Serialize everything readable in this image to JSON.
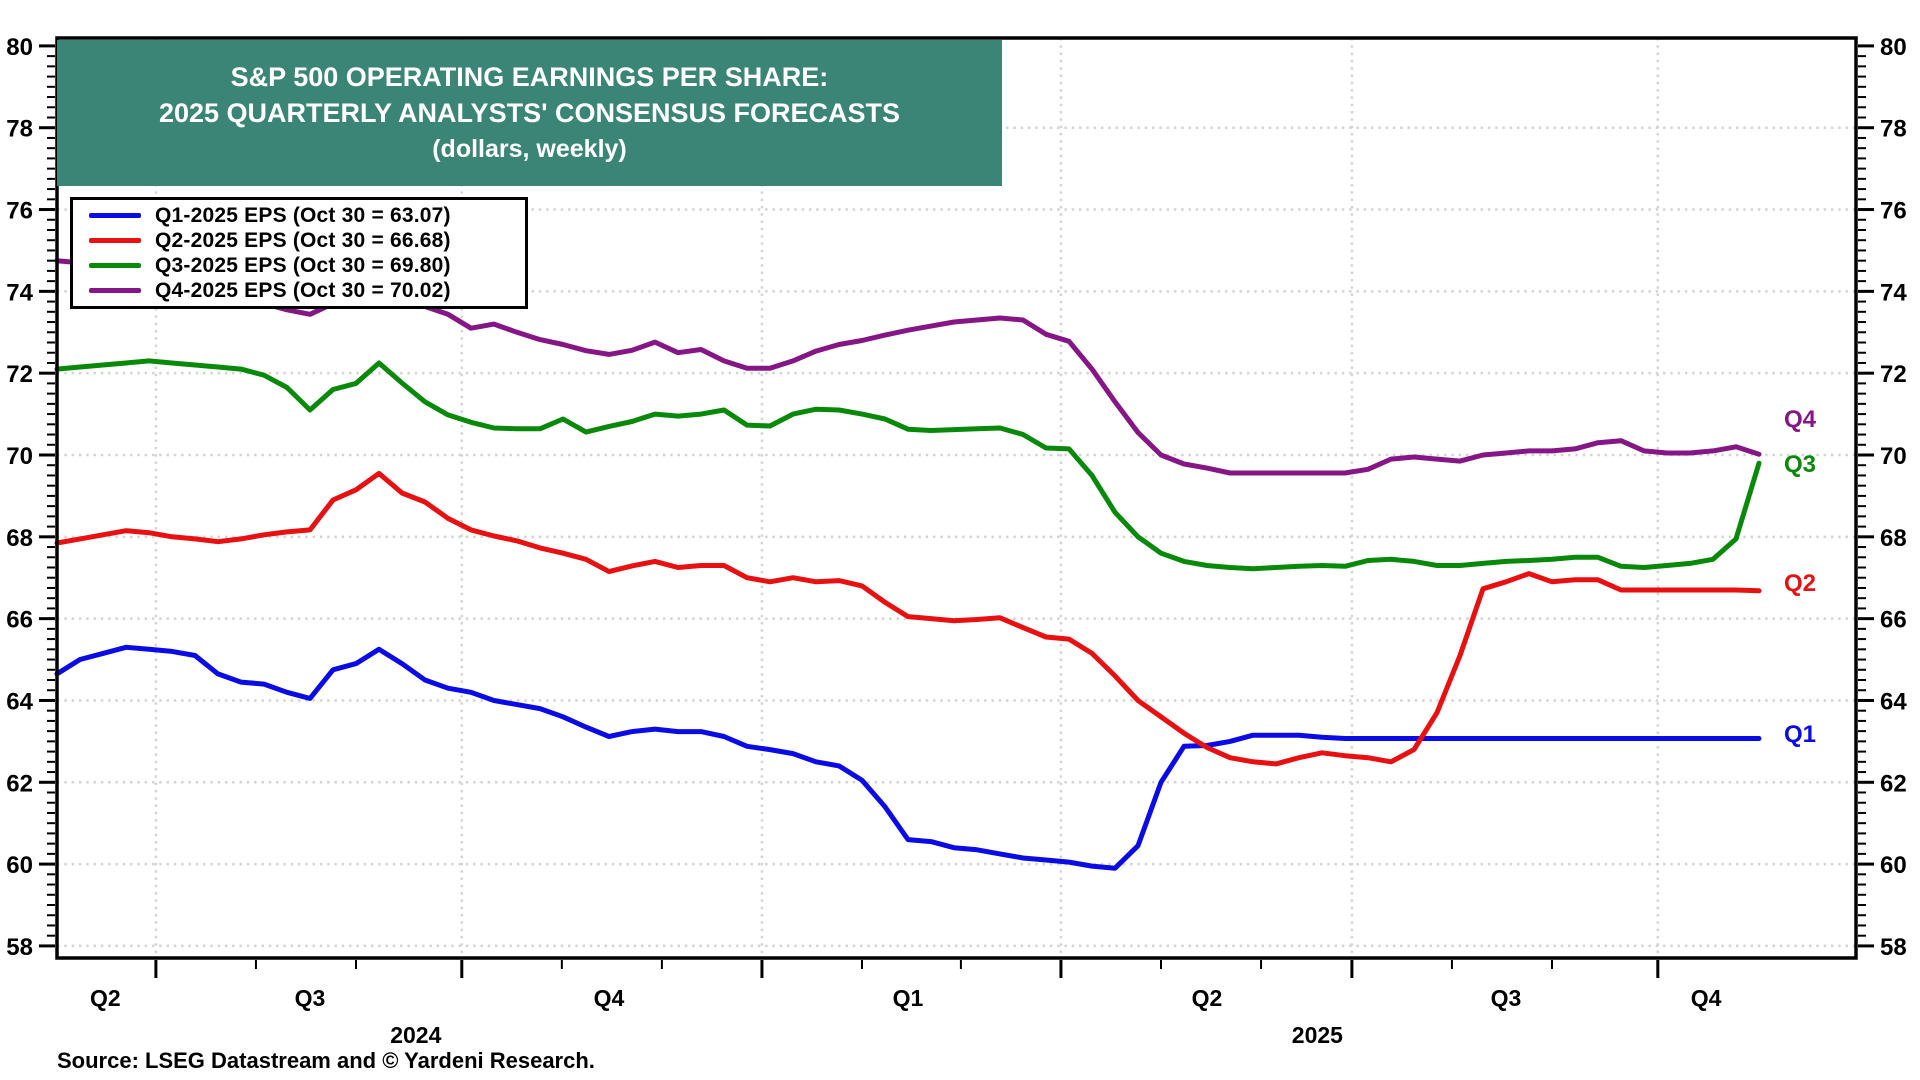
{
  "chart_data": {
    "type": "line",
    "title": {
      "line1": "S&P 500 OPERATING EARNINGS PER SHARE:",
      "line2": "2025 QUARTERLY ANALYSTS' CONSENSUS FORECASTS",
      "line3": "(dollars, weekly)"
    },
    "source": "Source: LSEG Datastream and © Yardeni Research.",
    "colors": {
      "title_box": "#3b8577",
      "q1": "#0b0be6",
      "q2": "#e81010",
      "q3": "#098909",
      "q4": "#861686",
      "gridline": "#d4d4d4",
      "axis": "#000000"
    },
    "y_axis": {
      "min": 58,
      "max": 80,
      "label_step": 2,
      "minor_tick_step": 0.25,
      "tick_labels": [
        80,
        78,
        76,
        74,
        72,
        70,
        68,
        66,
        64,
        62,
        60,
        58
      ]
    },
    "x_axis": {
      "quarter_labels": [
        {
          "label": "Q2",
          "week": 2.1
        },
        {
          "label": "Q3",
          "week": 11.0
        },
        {
          "label": "Q4",
          "week": 24.0
        },
        {
          "label": "Q1",
          "week": 37.0
        },
        {
          "label": "Q2",
          "week": 50.0
        },
        {
          "label": "Q3",
          "week": 63.0
        },
        {
          "label": "Q4",
          "week": 71.7
        }
      ],
      "year_labels": [
        {
          "label": "2024",
          "week": 15.6
        },
        {
          "label": "2025",
          "week": 54.8
        }
      ],
      "quarter_boundary_weeks": [
        4.3,
        17.6,
        30.65,
        43.65,
        56.3,
        69.6
      ],
      "month_tick_weeks": [
        4.3,
        8.65,
        13.0,
        17.6,
        21.95,
        26.3,
        30.65,
        35.0,
        39.3,
        43.65,
        48.0,
        52.35,
        56.3,
        60.65,
        65.0,
        69.6
      ]
    },
    "series": [
      {
        "id": "q1",
        "end_label": "Q1",
        "end_value": 63.07,
        "label_at_value": 63.15,
        "legend": "Q1-2025 EPS (Oct 30 = 63.07)",
        "values": [
          64.65,
          65.0,
          65.15,
          65.3,
          65.25,
          65.2,
          65.1,
          64.65,
          64.45,
          64.4,
          64.2,
          64.05,
          64.75,
          64.9,
          65.25,
          64.9,
          64.5,
          64.3,
          64.2,
          64.0,
          63.9,
          63.8,
          63.6,
          63.35,
          63.12,
          63.24,
          63.3,
          63.24,
          63.24,
          63.12,
          62.88,
          62.8,
          62.7,
          62.5,
          62.4,
          62.05,
          61.4,
          60.6,
          60.55,
          60.4,
          60.35,
          60.25,
          60.15,
          60.1,
          60.05,
          59.95,
          59.9,
          60.45,
          62.0,
          62.88,
          62.9,
          63.0,
          63.15,
          63.15,
          63.15,
          63.1,
          63.07,
          63.07,
          63.07,
          63.07,
          63.07,
          63.07,
          63.07,
          63.07,
          63.07,
          63.07,
          63.07,
          63.07,
          63.07,
          63.07,
          63.07,
          63.07,
          63.07,
          63.07,
          63.07
        ]
      },
      {
        "id": "q2",
        "end_label": "Q2",
        "end_value": 66.68,
        "label_at_value": 66.85,
        "legend": "Q2-2025 EPS (Oct 30 = 66.68)",
        "values": [
          67.85,
          67.95,
          68.05,
          68.15,
          68.1,
          68.0,
          67.95,
          67.88,
          67.95,
          68.05,
          68.12,
          68.17,
          68.9,
          69.15,
          69.55,
          69.07,
          68.85,
          68.45,
          68.17,
          68.02,
          67.9,
          67.73,
          67.6,
          67.45,
          67.15,
          67.29,
          67.4,
          67.25,
          67.3,
          67.3,
          67.0,
          66.9,
          67.0,
          66.9,
          66.93,
          66.8,
          66.4,
          66.05,
          66.0,
          65.95,
          65.98,
          66.02,
          65.78,
          65.55,
          65.5,
          65.15,
          64.6,
          64.0,
          63.6,
          63.2,
          62.85,
          62.6,
          62.5,
          62.45,
          62.6,
          62.72,
          62.65,
          62.6,
          62.5,
          62.8,
          63.7,
          65.1,
          66.73,
          66.9,
          67.1,
          66.9,
          66.95,
          66.95,
          66.7,
          66.7,
          66.7,
          66.7,
          66.7,
          66.7,
          66.68
        ]
      },
      {
        "id": "q3",
        "end_label": "Q3",
        "end_value": 69.8,
        "label_at_value": 69.75,
        "legend": "Q3-2025 EPS (Oct 30 = 69.80)",
        "values": [
          72.1,
          72.15,
          72.2,
          72.25,
          72.3,
          72.25,
          72.2,
          72.15,
          72.1,
          71.95,
          71.65,
          71.1,
          71.6,
          71.75,
          72.25,
          71.76,
          71.3,
          70.98,
          70.8,
          70.66,
          70.64,
          70.64,
          70.88,
          70.56,
          70.7,
          70.82,
          71.0,
          70.95,
          71.0,
          71.1,
          70.73,
          70.71,
          71.0,
          71.12,
          71.1,
          71.0,
          70.88,
          70.63,
          70.6,
          70.62,
          70.64,
          70.66,
          70.5,
          70.17,
          70.15,
          69.5,
          68.6,
          68.0,
          67.6,
          67.4,
          67.3,
          67.25,
          67.22,
          67.25,
          67.28,
          67.3,
          67.28,
          67.42,
          67.45,
          67.4,
          67.3,
          67.3,
          67.35,
          67.4,
          67.42,
          67.45,
          67.5,
          67.5,
          67.28,
          67.25,
          67.3,
          67.35,
          67.45,
          67.95,
          69.8
        ]
      },
      {
        "id": "q4",
        "end_label": "Q4",
        "end_value": 70.02,
        "label_at_value": 70.85,
        "legend": "Q4-2025 EPS (Oct 30 = 70.02)",
        "values": [
          74.75,
          74.7,
          74.6,
          74.5,
          74.4,
          74.3,
          74.2,
          74.05,
          73.9,
          73.7,
          73.55,
          73.44,
          73.7,
          73.8,
          73.85,
          73.8,
          73.63,
          73.44,
          73.1,
          73.2,
          73.0,
          72.82,
          72.7,
          72.55,
          72.46,
          72.56,
          72.76,
          72.5,
          72.58,
          72.3,
          72.12,
          72.12,
          72.3,
          72.54,
          72.7,
          72.8,
          72.93,
          73.05,
          73.15,
          73.25,
          73.3,
          73.35,
          73.3,
          72.95,
          72.78,
          72.1,
          71.3,
          70.55,
          70.0,
          69.78,
          69.68,
          69.56,
          69.56,
          69.56,
          69.56,
          69.56,
          69.56,
          69.65,
          69.9,
          69.95,
          69.9,
          69.85,
          70.0,
          70.05,
          70.1,
          70.1,
          70.15,
          70.3,
          70.35,
          70.1,
          70.05,
          70.05,
          70.1,
          70.2,
          70.02
        ]
      }
    ]
  }
}
